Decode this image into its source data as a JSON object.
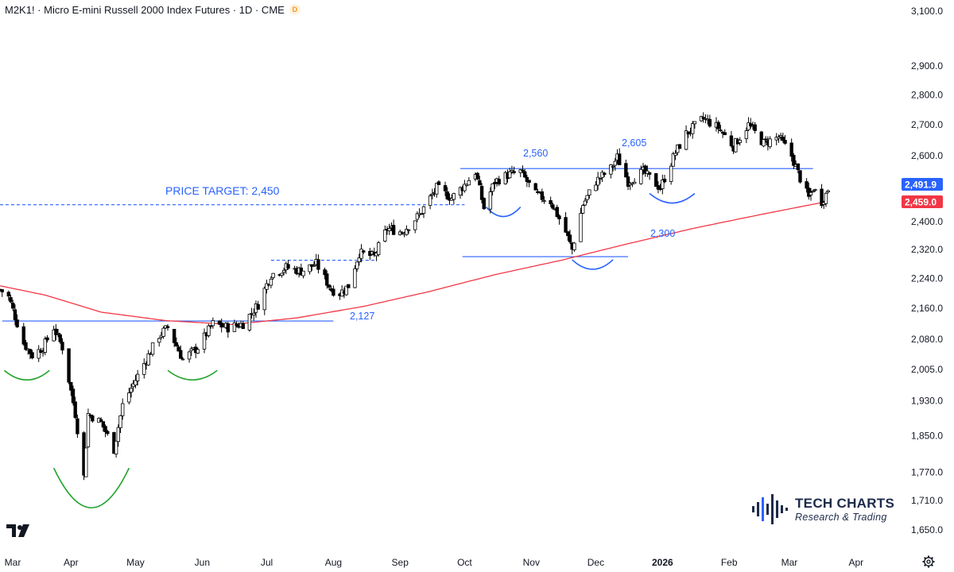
{
  "header": {
    "title": "M2K1! · Micro E-mini Russell 2000 Index Futures · 1D · CME",
    "badge": "D"
  },
  "brand": {
    "name": "TECH CHARTS",
    "subtitle": "Research & Trading"
  },
  "colors": {
    "up_candle": "#ffffff",
    "down_candle": "#000000",
    "ma_line": "#f23645",
    "annotation_line": "#2962ff",
    "pattern_curve": "#22a32c",
    "current_price_badge": "#2962ff",
    "ma_badge": "#f23645"
  },
  "icons": {
    "logo": "tradingview-logo-icon",
    "settings": "gear-icon"
  },
  "chart_data": {
    "type": "candlestick",
    "title": "M2K1! · Micro E-mini Russell 2000 Index Futures · 1D · CME",
    "y_axis": {
      "ticks": [
        "3,100.0",
        "2,900.0",
        "2,800.0",
        "2,700.0",
        "2,600.0",
        "2,491.9",
        "2,459.0",
        "2,400.0",
        "2,320.0",
        "2,240.0",
        "2,160.0",
        "2,080.0",
        "2,005.0",
        "1,930.0",
        "1,850.0",
        "1,770.0",
        "1,710.0",
        "1,650.0"
      ],
      "scale": "log",
      "range": [
        1620,
        3130
      ]
    },
    "x_axis": {
      "ticks": [
        "Mar",
        "Apr",
        "May",
        "Jun",
        "Jul",
        "Aug",
        "Sep",
        "Oct",
        "Nov",
        "Dec",
        "2026",
        "Feb",
        "Mar",
        "Apr"
      ],
      "range": [
        "2025-02-27",
        "2026-04-14"
      ]
    },
    "last_price": 2491.9,
    "moving_average_value": 2459.0,
    "annotations": [
      {
        "label": "PRICE TARGET: 2,450",
        "value": 2450,
        "style": "dashed",
        "from": "2025-02-27",
        "to": "2025-10-01"
      },
      {
        "label": "2,127",
        "value": 2127,
        "style": "solid",
        "from": "2025-02-28",
        "to": "2025-08-01"
      },
      {
        "label": "2,560",
        "value": 2560,
        "style": "solid",
        "from": "2025-09-29",
        "to": "2026-03-12"
      },
      {
        "label": "2,605",
        "value": 2605,
        "style": "text"
      },
      {
        "label": "2,300",
        "value": 2300,
        "style": "solid",
        "from": "2025-09-30",
        "to": "2025-12-16"
      },
      {
        "label": "",
        "value": 2290,
        "style": "dashed",
        "from": "2025-07-03",
        "to": "2025-08-21"
      }
    ],
    "pattern_arcs": [
      {
        "kind": "green",
        "from": "2025-03-01",
        "to": "2025-03-22",
        "depth_to": 1980
      },
      {
        "kind": "green",
        "from": "2025-03-24",
        "to": "2025-04-28",
        "depth_to": 1695
      },
      {
        "kind": "green",
        "from": "2025-05-16",
        "to": "2025-06-08",
        "depth_to": 1980
      },
      {
        "kind": "blue",
        "from": "2025-10-11",
        "to": "2025-10-27",
        "depth_to": 2415
      },
      {
        "kind": "blue",
        "from": "2025-11-20",
        "to": "2025-12-09",
        "depth_to": 2265
      },
      {
        "kind": "blue",
        "from": "2025-12-26",
        "to": "2026-01-16",
        "depth_to": 2455
      }
    ],
    "ma_anchors": [
      [
        "2025-02-27",
        2220
      ],
      [
        "2025-03-20",
        2195
      ],
      [
        "2025-04-15",
        2150
      ],
      [
        "2025-05-15",
        2128
      ],
      [
        "2025-06-15",
        2118
      ],
      [
        "2025-07-15",
        2135
      ],
      [
        "2025-08-15",
        2165
      ],
      [
        "2025-09-15",
        2205
      ],
      [
        "2025-10-15",
        2250
      ],
      [
        "2025-11-15",
        2290
      ],
      [
        "2025-12-15",
        2335
      ],
      [
        "2026-01-15",
        2380
      ],
      [
        "2026-02-15",
        2420
      ],
      [
        "2026-03-15",
        2455
      ],
      [
        "2026-03-18",
        2459
      ]
    ],
    "price_anchors": [
      [
        "2025-02-27",
        2210
      ],
      [
        "2025-03-03",
        2190
      ],
      [
        "2025-03-10",
        2070
      ],
      [
        "2025-03-14",
        2040
      ],
      [
        "2025-03-19",
        2060
      ],
      [
        "2025-03-24",
        2110
      ],
      [
        "2025-03-28",
        2060
      ],
      [
        "2025-04-03",
        1900
      ],
      [
        "2025-04-07",
        1760
      ],
      [
        "2025-04-09",
        1900
      ],
      [
        "2025-04-15",
        1880
      ],
      [
        "2025-04-21",
        1820
      ],
      [
        "2025-04-25",
        1920
      ],
      [
        "2025-05-02",
        1990
      ],
      [
        "2025-05-12",
        2090
      ],
      [
        "2025-05-16",
        2110
      ],
      [
        "2025-05-23",
        2030
      ],
      [
        "2025-05-30",
        2060
      ],
      [
        "2025-06-06",
        2120
      ],
      [
        "2025-06-13",
        2110
      ],
      [
        "2025-06-20",
        2120
      ],
      [
        "2025-06-27",
        2170
      ],
      [
        "2025-07-03",
        2250
      ],
      [
        "2025-07-10",
        2270
      ],
      [
        "2025-07-17",
        2260
      ],
      [
        "2025-07-24",
        2280
      ],
      [
        "2025-07-31",
        2210
      ],
      [
        "2025-08-04",
        2200
      ],
      [
        "2025-08-08",
        2220
      ],
      [
        "2025-08-13",
        2310
      ],
      [
        "2025-08-20",
        2300
      ],
      [
        "2025-08-26",
        2380
      ],
      [
        "2025-09-02",
        2370
      ],
      [
        "2025-09-10",
        2420
      ],
      [
        "2025-09-18",
        2500
      ],
      [
        "2025-09-25",
        2470
      ],
      [
        "2025-10-01",
        2510
      ],
      [
        "2025-10-06",
        2550
      ],
      [
        "2025-10-10",
        2440
      ],
      [
        "2025-10-15",
        2520
      ],
      [
        "2025-10-21",
        2540
      ],
      [
        "2025-10-27",
        2550
      ],
      [
        "2025-11-03",
        2480
      ],
      [
        "2025-11-10",
        2460
      ],
      [
        "2025-11-17",
        2370
      ],
      [
        "2025-11-20",
        2320
      ],
      [
        "2025-11-25",
        2450
      ],
      [
        "2025-12-01",
        2520
      ],
      [
        "2025-12-08",
        2560
      ],
      [
        "2025-12-11",
        2595
      ],
      [
        "2025-12-16",
        2520
      ],
      [
        "2025-12-23",
        2550
      ],
      [
        "2025-12-31",
        2500
      ],
      [
        "2026-01-07",
        2610
      ],
      [
        "2026-01-12",
        2670
      ],
      [
        "2026-01-20",
        2720
      ],
      [
        "2026-01-27",
        2690
      ],
      [
        "2026-02-03",
        2630
      ],
      [
        "2026-02-10",
        2700
      ],
      [
        "2026-02-17",
        2640
      ],
      [
        "2026-02-24",
        2660
      ],
      [
        "2026-03-02",
        2600
      ],
      [
        "2026-03-06",
        2530
      ],
      [
        "2026-03-10",
        2470
      ],
      [
        "2026-03-12",
        2500
      ],
      [
        "2026-03-16",
        2460
      ],
      [
        "2026-03-19",
        2492
      ]
    ]
  },
  "labels": {
    "target": "PRICE TARGET: 2,450",
    "l2127": "2,127",
    "l2560": "2,560",
    "l2605": "2,605",
    "l2300": "2,300",
    "last": "2,491.9",
    "ma": "2,459.0"
  }
}
